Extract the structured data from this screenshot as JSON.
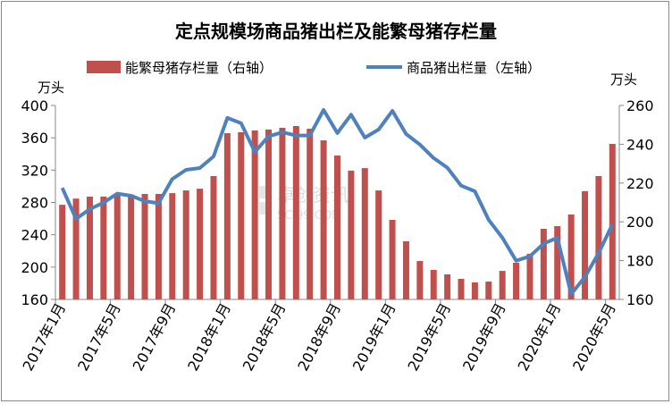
{
  "chart_data": {
    "type": "bar+line",
    "title": "定点规模场商品猪出栏及能繁母猪存栏量",
    "left_unit": "万头",
    "right_unit": "万头",
    "left_ylim": [
      160,
      400
    ],
    "left_ticks": [
      "400",
      "360",
      "320",
      "280",
      "240",
      "200",
      "160"
    ],
    "right_ylim": [
      160,
      260
    ],
    "right_ticks": [
      "260",
      "240",
      "220",
      "200",
      "180",
      "160"
    ],
    "x_tick_labels": [
      "2017年1月",
      "2017年5月",
      "2017年9月",
      "2018年1月",
      "2018年5月",
      "2018年9月",
      "2019年1月",
      "2019年5月",
      "2019年9月",
      "2020年1月",
      "2020年5月"
    ],
    "series": [
      {
        "name": "能繁母猪存栏量（右轴）",
        "type": "bar",
        "axis": "right",
        "color": "#C0504D",
        "values": [
          208.8,
          212,
          213,
          213,
          213.8,
          214,
          214.4,
          214.4,
          214.8,
          216.2,
          217.1,
          223.6,
          245.7,
          246.2,
          247.1,
          247.6,
          248.5,
          249.4,
          248,
          242,
          234.2,
          226.4,
          227.7,
          216.2,
          201,
          190,
          179.8,
          175.2,
          172.9,
          170.6,
          168.8,
          169.2,
          174.7,
          178.9,
          183.5,
          196.4,
          197.8,
          203.8,
          215.8,
          223.6,
          240.2
        ]
      },
      {
        "name": "商品猪出栏量（左轴）",
        "type": "line",
        "axis": "left",
        "color": "#4F81BD",
        "values": [
          298,
          259.6,
          271.7,
          279.8,
          290.9,
          288.3,
          281.7,
          279,
          309,
          320.4,
          322.6,
          337,
          384.6,
          378,
          342.5,
          361.7,
          366.9,
          362.8,
          362.8,
          394.5,
          365.8,
          388.6,
          360.2,
          370.2,
          393.4,
          364.6,
          351.7,
          335,
          323,
          300.8,
          293.8,
          258.5,
          236.3,
          207.9,
          213.4,
          229,
          236.3,
          166.6,
          187.7,
          217.2,
          253
        ]
      }
    ]
  }
}
